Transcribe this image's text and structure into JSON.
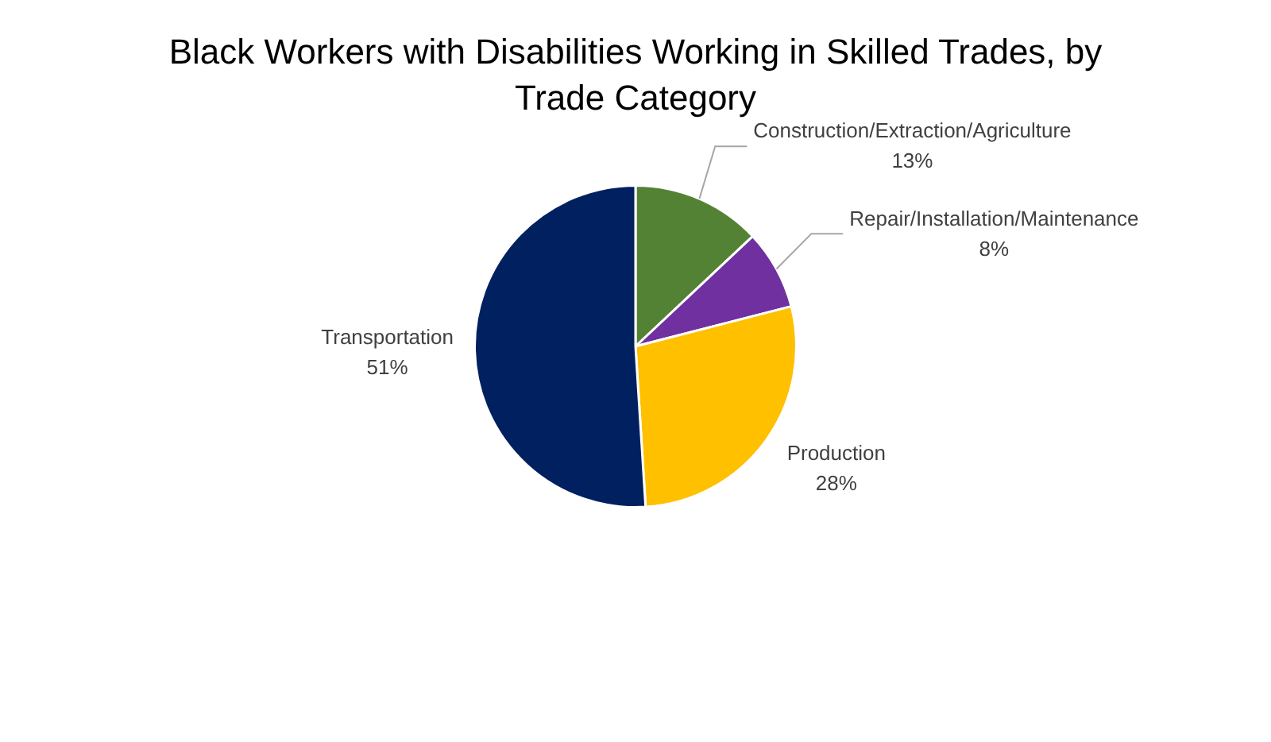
{
  "chart_data": {
    "type": "pie",
    "title": "Black Workers with Disabilities Working in Skilled  Trades, by Trade Category",
    "categories": [
      "Construction/Extraction/Agriculture",
      "Repair/Installation/Maintenance",
      "Production",
      "Transportation"
    ],
    "values": [
      13,
      8,
      28,
      51
    ],
    "colors": [
      "#548235",
      "#7030a0",
      "#ffc000",
      "#002060"
    ],
    "value_labels": [
      "13%",
      "8%",
      "28%",
      "51%"
    ],
    "legend": false
  }
}
